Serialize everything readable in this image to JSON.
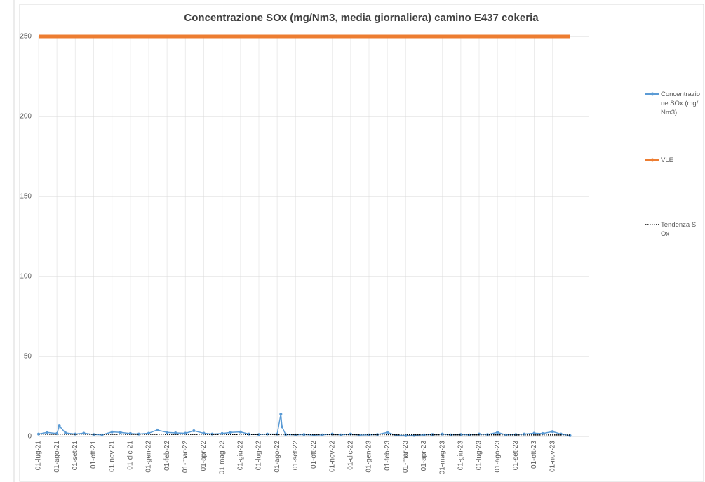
{
  "chart_data": {
    "type": "line",
    "title": "Concentrazione SOx (mg/Nm3, media giornaliera) camino E437 cokeria",
    "xticks": [
      "01-lug-21",
      "01-ago-21",
      "01-set-21",
      "01-ott-21",
      "01-nov-21",
      "01-dic-21",
      "01-gen-22",
      "01-feb-22",
      "01-mar-22",
      "01-apr-22",
      "01-mag-22",
      "01-giu-22",
      "01-lug-22",
      "01-ago-22",
      "01-set-22",
      "01-ott-22",
      "01-nov-22",
      "01-dic-22",
      "01-gen-23",
      "01-feb-23",
      "01-mar-23",
      "01-apr-23",
      "01-mag-23",
      "01-giu-23",
      "01-lug-23",
      "01-ago-23",
      "01-set-23",
      "01-ott-23",
      "01-nov-23"
    ],
    "ylim": [
      0,
      250
    ],
    "yticks": [
      0,
      50,
      100,
      150,
      200,
      250
    ],
    "grid": true,
    "series": [
      {
        "name": "Concentrazione SOx (mg/Nm3)",
        "color": "#5b9bd5",
        "style": "markers",
        "x": [
          "01-lug-21",
          "15-lug-21",
          "01-ago-21",
          "05-ago-21",
          "15-ago-21",
          "01-set-21",
          "15-set-21",
          "01-ott-21",
          "15-ott-21",
          "01-nov-21",
          "15-nov-21",
          "01-dic-21",
          "15-dic-21",
          "01-gen-22",
          "15-gen-22",
          "01-feb-22",
          "15-feb-22",
          "01-mar-22",
          "15-mar-22",
          "01-apr-22",
          "15-apr-22",
          "01-mag-22",
          "15-mag-22",
          "01-giu-22",
          "15-giu-22",
          "01-lug-22",
          "15-lug-22",
          "01-ago-22",
          "07-ago-22",
          "09-ago-22",
          "15-ago-22",
          "01-set-22",
          "15-set-22",
          "01-ott-22",
          "15-ott-22",
          "01-nov-22",
          "15-nov-22",
          "01-dic-22",
          "15-dic-22",
          "01-gen-23",
          "15-gen-23",
          "01-feb-23",
          "15-feb-23",
          "01-mar-23",
          "15-mar-23",
          "01-apr-23",
          "15-apr-23",
          "01-mag-23",
          "15-mag-23",
          "01-giu-23",
          "15-giu-23",
          "01-lug-23",
          "15-lug-23",
          "01-ago-23",
          "15-ago-23",
          "01-set-23",
          "15-set-23",
          "01-ott-23",
          "15-ott-23",
          "01-nov-23",
          "15-nov-23",
          "30-nov-23"
        ],
        "values": [
          1.5,
          2.5,
          1.8,
          6.5,
          2.2,
          1.5,
          2.0,
          1.2,
          1.0,
          2.8,
          2.5,
          1.8,
          1.5,
          2.0,
          4.0,
          2.5,
          2.2,
          2.0,
          3.5,
          2.0,
          1.5,
          1.8,
          2.5,
          2.8,
          1.5,
          1.2,
          1.5,
          1.5,
          14,
          6,
          1.2,
          1.0,
          1.2,
          0.8,
          1.0,
          1.5,
          1.0,
          1.5,
          0.8,
          1.0,
          1.2,
          2.5,
          0.8,
          0.5,
          0.6,
          1.0,
          1.2,
          1.5,
          1.0,
          1.2,
          1.0,
          1.5,
          1.2,
          2.5,
          1.0,
          1.2,
          1.5,
          2.0,
          1.8,
          3.0,
          1.5,
          0.5
        ]
      },
      {
        "name": "VLE",
        "color": "#ed7d31",
        "style": "thick",
        "x": [
          "01-lug-21",
          "30-nov-23"
        ],
        "values": [
          250,
          250
        ]
      },
      {
        "name": "Tendenza SOx",
        "color": "#000000",
        "style": "dotted",
        "x": [
          "01-lug-21",
          "30-nov-23"
        ],
        "values": [
          1.4,
          0.9
        ]
      }
    ]
  }
}
